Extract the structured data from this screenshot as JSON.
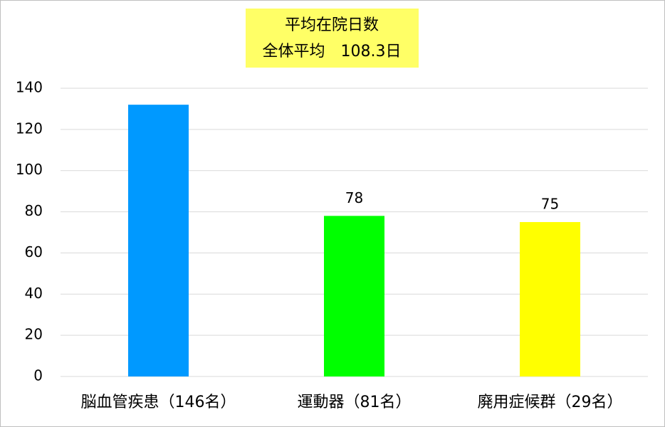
{
  "chart_data": {
    "type": "bar",
    "title": "平均在院日数",
    "subtitle": "全体平均　108.3日",
    "categories": [
      "脳血管疾患（146名）",
      "運動器（81名）",
      "廃用症候群（29名）"
    ],
    "values": [
      132,
      78,
      75
    ],
    "colors": [
      "#0099ff",
      "#00ff00",
      "#ffff00"
    ],
    "labeled": [
      false,
      true,
      true
    ],
    "ylim": [
      0,
      140
    ],
    "yticks": [
      0,
      20,
      40,
      60,
      80,
      100,
      120,
      140
    ],
    "grid": true
  }
}
